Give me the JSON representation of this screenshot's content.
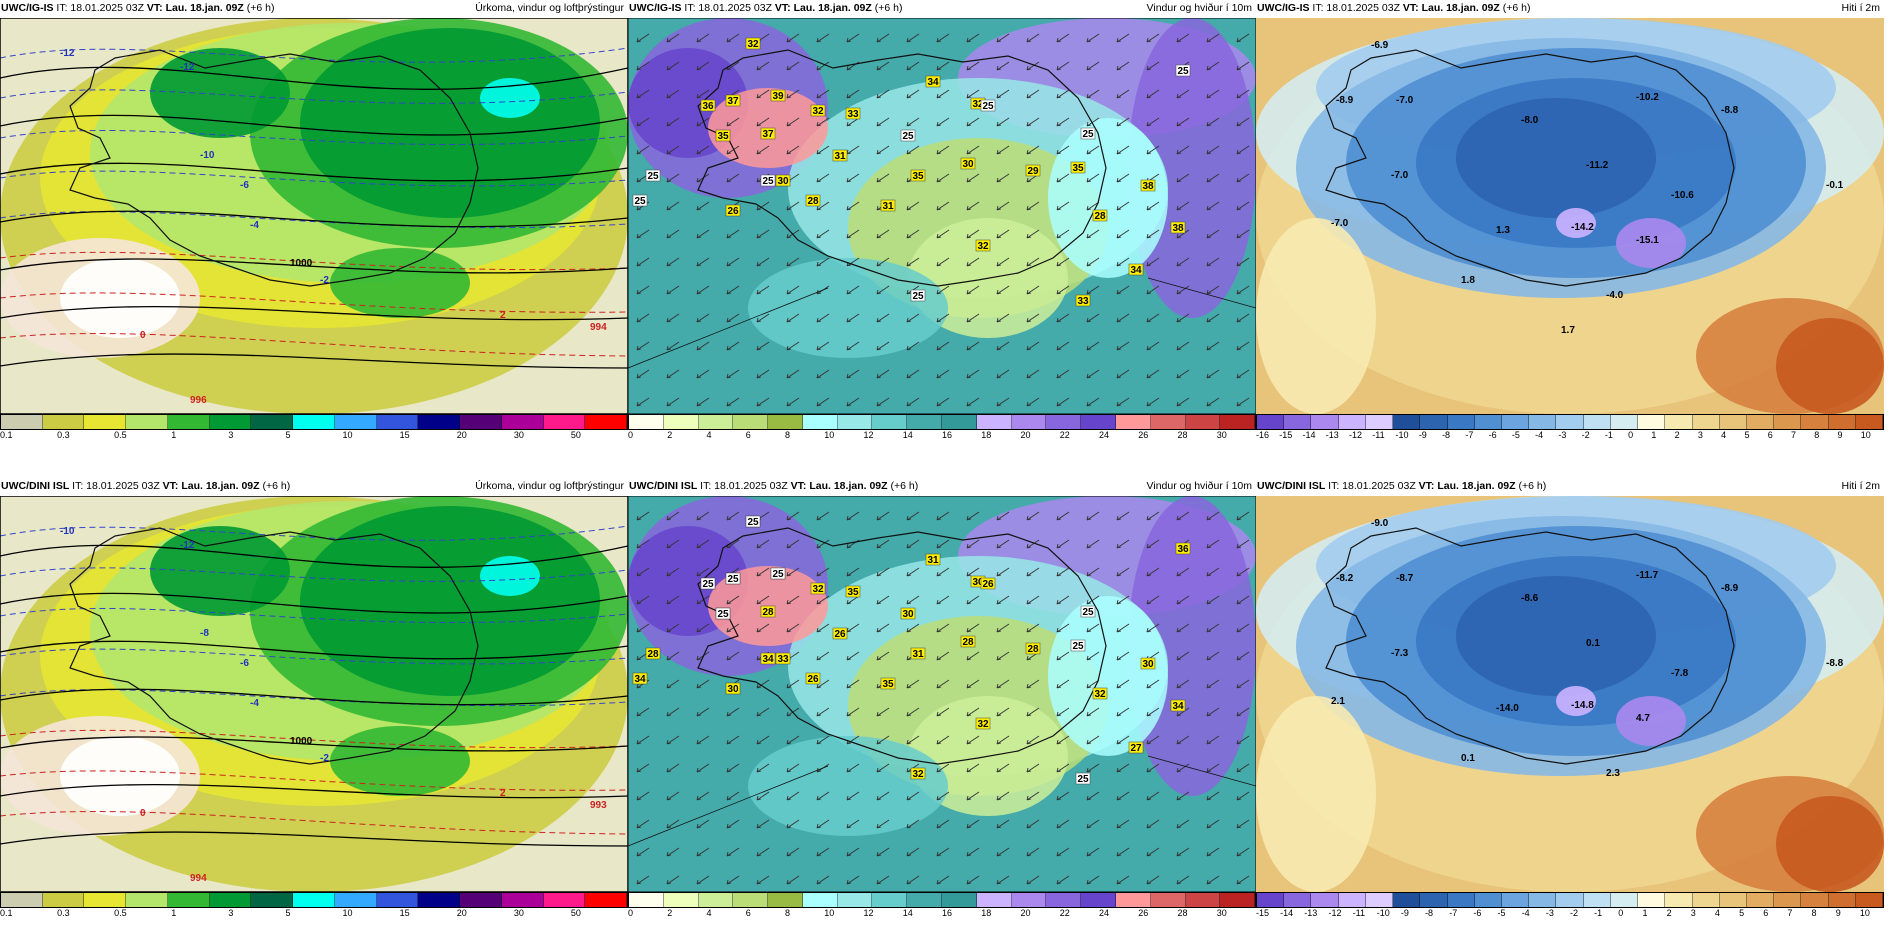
{
  "colors": {
    "precip": [
      "#ccccb0",
      "#cccc44",
      "#e6e633",
      "#b3e66b",
      "#33b833",
      "#009933",
      "#006644",
      "#00ffee",
      "#33aaff",
      "#3355dd",
      "#000088",
      "#550077",
      "#aa0099",
      "#ff1a8c",
      "#ff0000"
    ],
    "wind": [
      "#ffffee",
      "#eeffbb",
      "#ccee99",
      "#bbdd77",
      "#99bb44",
      "#aaffff",
      "#99e8e8",
      "#66cccc",
      "#44aaaa",
      "#339999",
      "#ccb3ff",
      "#aa88ee",
      "#8866dd",
      "#6644cc",
      "#ff9999",
      "#dd6666",
      "#cc4444",
      "#bb2222"
    ],
    "temp": [
      "#6644cc",
      "#8866dd",
      "#aa88ee",
      "#ccb3ff",
      "#ddccff",
      "#1f4e9a",
      "#2c64b0",
      "#3a78c4",
      "#4f8fd2",
      "#6ba4de",
      "#86b8e6",
      "#a3cdee",
      "#bfdff2",
      "#d5ecf0",
      "#fffbe0",
      "#f7eab0",
      "#efd690",
      "#e8c37a",
      "#e2ad62",
      "#dc974e",
      "#d6823e",
      "#d06e30",
      "#c85a20"
    ]
  },
  "panels": [
    {
      "model": "UWC/IG-IS",
      "it": "IT: 18.01.2025 03Z",
      "vt_label": "VT:",
      "vt": "Lau. 18.jan. 09Z",
      "lead": "(+6 h)",
      "title": "Úrkoma, vindur og loftþrýstingur",
      "type": "precip",
      "ticks": [
        "0.1",
        "0.3",
        "0.5",
        "1",
        "3",
        "5",
        "10",
        "15",
        "20",
        "30",
        "50"
      ],
      "labels": [
        "-12",
        "-12",
        "-10",
        "-6",
        "-4",
        "-2",
        "0",
        "2",
        "994",
        "996",
        "1000"
      ]
    },
    {
      "model": "UWC/IG-IS",
      "it": "IT: 18.01.2025 03Z",
      "vt_label": "VT:",
      "vt": "Lau. 18.jan. 09Z",
      "lead": "(+6 h)",
      "title": "Vindur og hviður í 10m",
      "type": "wind",
      "ticks": [
        "0",
        "2",
        "4",
        "6",
        "8",
        "10",
        "12",
        "14",
        "16",
        "18",
        "20",
        "22",
        "24",
        "26",
        "28",
        "30"
      ],
      "labels": [
        "32",
        "36",
        "37",
        "39",
        "35",
        "37",
        "32",
        "30",
        "33",
        "34",
        "32",
        "31",
        "26",
        "28",
        "31",
        "35",
        "30",
        "29",
        "35",
        "38",
        "32",
        "28",
        "34",
        "38",
        "25",
        "25",
        "25",
        "25",
        "25",
        "25",
        "25",
        "25",
        "33"
      ]
    },
    {
      "model": "UWC/IG-IS",
      "it": "IT: 18.01.2025 03Z",
      "vt_label": "VT:",
      "vt": "Lau. 18.jan. 09Z",
      "lead": "(+6 h)",
      "title": "Hiti í 2m",
      "type": "temp",
      "ticks": [
        "-16",
        "-15",
        "-14",
        "-13",
        "-12",
        "-11",
        "-10",
        "-9",
        "-8",
        "-7",
        "-6",
        "-5",
        "-4",
        "-3",
        "-2",
        "-1",
        "0",
        "1",
        "2",
        "3",
        "4",
        "5",
        "6",
        "7",
        "8",
        "9",
        "10"
      ],
      "labels": [
        "-6.9",
        "-8.9",
        "-7.0",
        "-8.0",
        "-10.2",
        "-8.8",
        "-7.0",
        "-11.2",
        "-10.6",
        "-0.1",
        "-7.0",
        "1.3",
        "-14.2",
        "-15.1",
        "1.8",
        "-4.0",
        "1.7"
      ]
    },
    {
      "model": "UWC/DINI ISL",
      "it": "IT: 18.01.2025 03Z",
      "vt_label": "VT:",
      "vt": "Lau. 18.jan. 09Z",
      "lead": "(+6 h)",
      "title": "Úrkoma, vindur og loftþrýstingur",
      "type": "precip",
      "ticks": [
        "0.1",
        "0.3",
        "0.5",
        "1",
        "3",
        "5",
        "10",
        "15",
        "20",
        "30",
        "50"
      ],
      "labels": [
        "-10",
        "-12",
        "-8",
        "-6",
        "-4",
        "-2",
        "0",
        "2",
        "993",
        "994",
        "1000"
      ]
    },
    {
      "model": "UWC/DINI ISL",
      "it": "IT: 18.01.2025 03Z",
      "vt_label": "VT:",
      "vt": "Lau. 18.jan. 09Z",
      "lead": "(+6 h)",
      "title": "Vindur og hviður í 10m",
      "type": "wind",
      "ticks": [
        "0",
        "2",
        "4",
        "6",
        "8",
        "10",
        "12",
        "14",
        "16",
        "18",
        "20",
        "22",
        "24",
        "26",
        "28",
        "30"
      ],
      "labels": [
        "30",
        "39",
        "40",
        "38",
        "36",
        "28",
        "32",
        "33",
        "35",
        "31",
        "30",
        "26",
        "30",
        "26",
        "35",
        "31",
        "28",
        "28",
        "25",
        "30",
        "32",
        "32",
        "27",
        "34",
        "36",
        "30",
        "34",
        "34",
        "28",
        "32",
        "26",
        "25",
        "25",
        "25",
        "25",
        "25",
        "25",
        "25"
      ]
    },
    {
      "model": "UWC/DINI ISL",
      "it": "IT: 18.01.2025 03Z",
      "vt_label": "VT:",
      "vt": "Lau. 18.jan. 09Z",
      "lead": "(+6 h)",
      "title": "Hiti í 2m",
      "type": "temp",
      "ticks": [
        "-15",
        "-14",
        "-13",
        "-12",
        "-11",
        "-10",
        "-9",
        "-8",
        "-7",
        "-6",
        "-5",
        "-4",
        "-3",
        "-2",
        "-1",
        "0",
        "1",
        "2",
        "3",
        "4",
        "5",
        "6",
        "7",
        "8",
        "9",
        "10"
      ],
      "labels": [
        "-9.0",
        "-8.2",
        "-8.7",
        "-8.6",
        "-11.7",
        "-8.9",
        "-7.3",
        "0.1",
        "-7.8",
        "-8.8",
        "2.1",
        "-14.0",
        "-14.8",
        "4.7",
        "0.1",
        "2.3"
      ]
    }
  ]
}
